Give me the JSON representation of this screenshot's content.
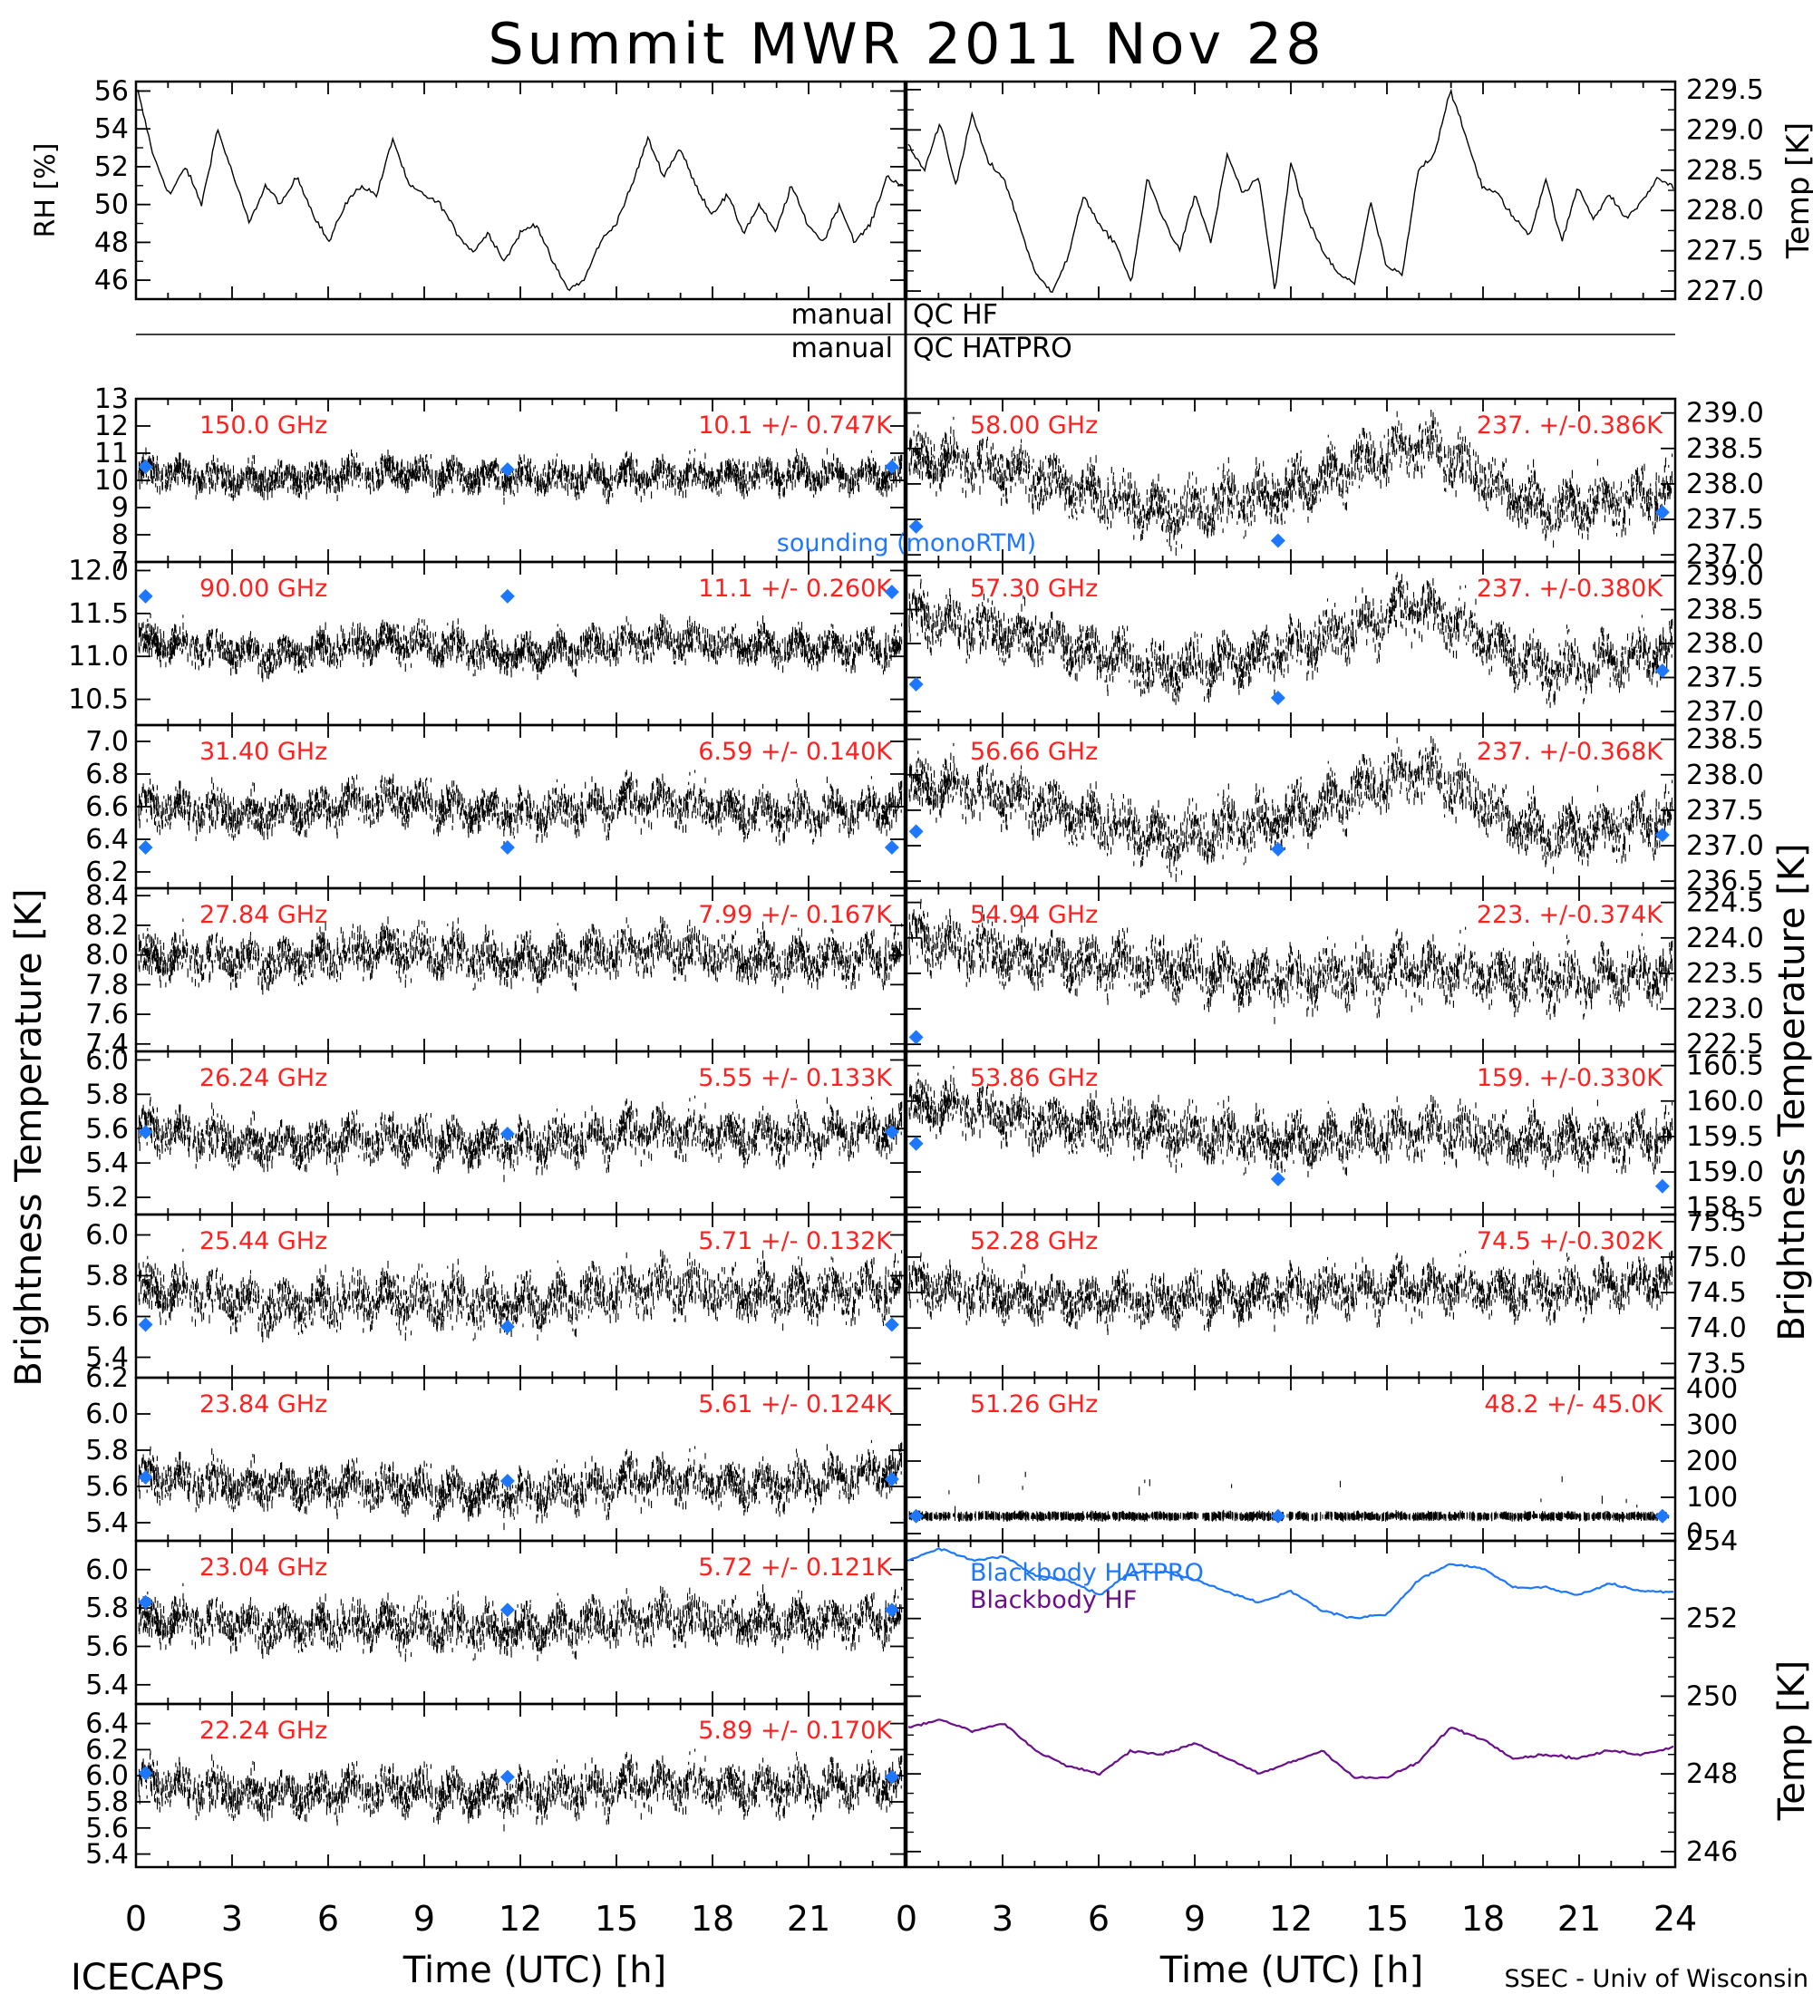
{
  "title": "Summit MWR 2011 Nov 28",
  "footer": {
    "left": "ICECAPS",
    "xlabel_left": "Time (UTC) [h]",
    "xlabel_right": "Time (UTC) [h]",
    "right": "SSEC - Univ of Wisconsin"
  },
  "qc_rows": [
    {
      "label_left": "manual",
      "label_right": "QC HF"
    },
    {
      "label_left": "manual",
      "label_right": "QC HATPRO"
    }
  ],
  "colors": {
    "trace": "#000000",
    "label": "#ff2020",
    "sounding": "#1e78ff",
    "bb_hatpro": "#1e78ff",
    "bb_hf": "#6a0f8a"
  },
  "axis_titles": {
    "left_main": "Brightness Temperature [K]",
    "right_main": "Brightness Temperature [K]"
  },
  "chart_data": [
    {
      "panel": "rh",
      "type": "line",
      "ylabel": "RH [%]",
      "x_ticks": [
        0,
        3,
        6,
        9,
        12,
        15,
        18,
        21,
        24
      ],
      "ylim": [
        45,
        56.5
      ],
      "y_ticks": [
        "46",
        "48",
        "50",
        "52",
        "54",
        "56"
      ],
      "y_tick_values": [
        46,
        48,
        50,
        52,
        54,
        56
      ],
      "x": [
        0,
        0.5,
        1,
        1.5,
        2,
        2.5,
        3,
        3.5,
        4,
        4.5,
        5,
        5.5,
        6,
        6.5,
        7,
        7.5,
        8,
        8.5,
        9,
        9.5,
        10,
        10.5,
        11,
        11.5,
        12,
        12.5,
        13,
        13.5,
        14,
        14.5,
        15,
        15.5,
        16,
        16.5,
        17,
        17.5,
        18,
        18.5,
        19,
        19.5,
        20,
        20.5,
        21,
        21.5,
        22,
        22.5,
        23,
        23.5,
        24
      ],
      "values": [
        56,
        52.5,
        50.5,
        52,
        50,
        54,
        51.5,
        49,
        51,
        50,
        51.5,
        49.5,
        48,
        50,
        51,
        50.5,
        53.5,
        51,
        50.5,
        50,
        48.5,
        47.5,
        48.5,
        47,
        48.5,
        49,
        47,
        45.5,
        46,
        48,
        49,
        51,
        53.5,
        51.5,
        53,
        51,
        49.5,
        50.5,
        48.5,
        50,
        48.5,
        51,
        49,
        48,
        50,
        48,
        49,
        51.5,
        51
      ]
    },
    {
      "panel": "air_temp",
      "type": "line",
      "ylabel": "Temp [K]",
      "x_ticks": [
        0,
        3,
        6,
        9,
        12,
        15,
        18,
        21,
        24
      ],
      "ylim": [
        226.9,
        229.6
      ],
      "y_ticks": [
        "227.0",
        "227.5",
        "228.0",
        "228.5",
        "229.0",
        "229.5"
      ],
      "y_tick_values": [
        227.0,
        227.5,
        228.0,
        228.5,
        229.0,
        229.5
      ],
      "x": [
        0,
        0.5,
        1,
        1.5,
        2,
        2.5,
        3,
        3.5,
        4,
        4.5,
        5,
        5.5,
        6,
        6.5,
        7,
        7.5,
        8,
        8.5,
        9,
        9.5,
        10,
        10.5,
        11,
        11.5,
        12,
        12.5,
        13,
        13.5,
        14,
        14.5,
        15,
        15.5,
        16,
        16.5,
        17,
        17.5,
        18,
        18.5,
        19,
        19.5,
        20,
        20.5,
        21,
        21.5,
        22,
        22.5,
        23,
        23.5,
        24
      ],
      "values": [
        228.8,
        228.5,
        229.1,
        228.3,
        229.2,
        228.6,
        228.4,
        227.8,
        227.2,
        227.0,
        227.4,
        228.2,
        227.8,
        227.6,
        227.1,
        228.4,
        227.9,
        227.5,
        228.2,
        227.6,
        228.7,
        228.2,
        228.4,
        227.0,
        228.6,
        227.9,
        227.5,
        227.2,
        227.1,
        228.1,
        227.3,
        227.2,
        228.5,
        228.7,
        229.5,
        228.9,
        228.3,
        228.2,
        227.9,
        227.7,
        228.4,
        227.6,
        228.3,
        227.9,
        228.2,
        227.9,
        228.1,
        228.4,
        228.3
      ]
    },
    {
      "panel": "hatpro",
      "type": "scatter",
      "freq": "150.0 GHz",
      "stats": "10.1 +/- 0.747K",
      "ylim": [
        7,
        13
      ],
      "y_ticks": [
        "7",
        "8",
        "9",
        "10",
        "11",
        "12",
        "13"
      ],
      "y_tick_values": [
        7,
        8,
        9,
        10,
        11,
        12,
        13
      ],
      "trend": [
        10.3,
        10.0,
        10.3,
        10.1,
        10.2,
        10.2,
        10.2
      ],
      "noise": 0.9,
      "sounding": {
        "x": [
          0.3,
          11.6,
          23.6
        ],
        "y": [
          10.5,
          10.4,
          10.5
        ],
        "label": "sounding (monoRTM)"
      }
    },
    {
      "panel": "hatpro",
      "type": "scatter",
      "freq": "90.00 GHz",
      "stats": "11.1 +/- 0.260K",
      "ylim": [
        10.2,
        12.1
      ],
      "y_ticks": [
        "10.5",
        "11.0",
        "11.5",
        "12.0"
      ],
      "y_tick_values": [
        10.5,
        11.0,
        11.5,
        12.0
      ],
      "trend": [
        11.2,
        11.0,
        11.2,
        11.0,
        11.2,
        11.1,
        11.1
      ],
      "noise": 0.32,
      "sounding": {
        "x": [
          0.3,
          11.6,
          23.6
        ],
        "y": [
          11.7,
          11.7,
          11.75
        ]
      }
    },
    {
      "panel": "hatpro",
      "type": "scatter",
      "freq": "31.40 GHz",
      "stats": "6.59 +/- 0.140K",
      "ylim": [
        6.1,
        7.1
      ],
      "y_ticks": [
        "6.2",
        "6.4",
        "6.6",
        "6.8",
        "7.0"
      ],
      "y_tick_values": [
        6.2,
        6.4,
        6.6,
        6.8,
        7.0
      ],
      "trend": [
        6.6,
        6.55,
        6.65,
        6.55,
        6.65,
        6.55,
        6.6
      ],
      "noise": 0.2,
      "sounding": {
        "x": [
          0.3,
          11.6,
          23.6
        ],
        "y": [
          6.35,
          6.35,
          6.35
        ]
      }
    },
    {
      "panel": "hatpro",
      "type": "scatter",
      "freq": "27.84 GHz",
      "stats": "7.99 +/- 0.167K",
      "ylim": [
        7.35,
        8.45
      ],
      "y_ticks": [
        "7.4",
        "7.6",
        "7.8",
        "8.0",
        "8.2",
        "8.4"
      ],
      "y_tick_values": [
        7.4,
        7.6,
        7.8,
        8.0,
        8.2,
        8.4
      ],
      "trend": [
        8.0,
        7.95,
        8.05,
        7.95,
        8.05,
        7.95,
        8.0
      ],
      "noise": 0.24,
      "sounding": {
        "x": [],
        "y": []
      }
    },
    {
      "panel": "hatpro",
      "type": "scatter",
      "freq": "26.24 GHz",
      "stats": "5.55 +/- 0.133K",
      "ylim": [
        5.1,
        6.05
      ],
      "y_ticks": [
        "5.2",
        "5.4",
        "5.6",
        "5.8",
        "6.0"
      ],
      "y_tick_values": [
        5.2,
        5.4,
        5.6,
        5.8,
        6.0
      ],
      "trend": [
        5.6,
        5.5,
        5.55,
        5.5,
        5.6,
        5.55,
        5.6
      ],
      "noise": 0.2,
      "sounding": {
        "x": [
          0.3,
          11.6,
          23.6
        ],
        "y": [
          5.58,
          5.57,
          5.58
        ]
      }
    },
    {
      "panel": "hatpro",
      "type": "scatter",
      "freq": "25.44 GHz",
      "stats": "5.71 +/- 0.132K",
      "ylim": [
        5.3,
        6.1
      ],
      "y_ticks": [
        "5.4",
        "5.6",
        "5.8",
        "6.0"
      ],
      "y_tick_values": [
        5.4,
        5.6,
        5.8,
        6.0
      ],
      "trend": [
        5.75,
        5.65,
        5.7,
        5.65,
        5.75,
        5.7,
        5.75
      ],
      "noise": 0.2,
      "sounding": {
        "x": [
          0.3,
          11.6,
          23.6
        ],
        "y": [
          5.56,
          5.55,
          5.56
        ]
      }
    },
    {
      "panel": "hatpro",
      "type": "scatter",
      "freq": "23.84 GHz",
      "stats": "5.61 +/- 0.124K",
      "ylim": [
        5.3,
        6.2
      ],
      "y_ticks": [
        "5.4",
        "5.6",
        "5.8",
        "6.0",
        "6.2"
      ],
      "y_tick_values": [
        5.4,
        5.6,
        5.8,
        6.0,
        6.2
      ],
      "trend": [
        5.65,
        5.6,
        5.6,
        5.55,
        5.65,
        5.6,
        5.7
      ],
      "noise": 0.18,
      "sounding": {
        "x": [
          0.3,
          11.6,
          23.6
        ],
        "y": [
          5.65,
          5.63,
          5.64
        ]
      }
    },
    {
      "panel": "hatpro",
      "type": "scatter",
      "freq": "23.04 GHz",
      "stats": "5.72 +/- 0.121K",
      "ylim": [
        5.3,
        6.15
      ],
      "y_ticks": [
        "5.4",
        "5.6",
        "5.8",
        "6.0"
      ],
      "y_tick_values": [
        5.4,
        5.6,
        5.8,
        6.0
      ],
      "trend": [
        5.75,
        5.7,
        5.72,
        5.68,
        5.75,
        5.72,
        5.75
      ],
      "noise": 0.18,
      "sounding": {
        "x": [
          0.3,
          11.6,
          23.6
        ],
        "y": [
          5.83,
          5.79,
          5.79
        ]
      }
    },
    {
      "panel": "hatpro",
      "type": "scatter",
      "freq": "22.24 GHz",
      "stats": "5.89 +/- 0.170K",
      "ylim": [
        5.3,
        6.55
      ],
      "y_ticks": [
        "5.4",
        "5.6",
        "5.8",
        "6.0",
        "6.2",
        "6.4"
      ],
      "y_tick_values": [
        5.4,
        5.6,
        5.8,
        6.0,
        6.2,
        6.4
      ],
      "trend": [
        5.95,
        5.85,
        5.9,
        5.85,
        5.95,
        5.9,
        5.95
      ],
      "noise": 0.26,
      "sounding": {
        "x": [
          0.3,
          11.6,
          23.6
        ],
        "y": [
          6.02,
          5.99,
          5.99
        ]
      }
    },
    {
      "panel": "hf",
      "type": "scatter",
      "freq": "58.00 GHz",
      "stats": "237. +/-0.386K",
      "ylim": [
        236.9,
        239.2
      ],
      "y_ticks": [
        "237.0",
        "237.5",
        "238.0",
        "238.5",
        "239.0"
      ],
      "y_tick_values": [
        237.0,
        237.5,
        238.0,
        238.5,
        239.0
      ],
      "trend": [
        238.4,
        238.1,
        237.6,
        237.9,
        238.6,
        237.6,
        237.9
      ],
      "noise": 0.6,
      "sounding": {
        "x": [
          0.3,
          11.6,
          23.6
        ],
        "y": [
          237.4,
          237.2,
          237.6
        ]
      }
    },
    {
      "panel": "hf",
      "type": "scatter",
      "freq": "57.30 GHz",
      "stats": "237. +/-0.380K",
      "ylim": [
        236.8,
        239.2
      ],
      "y_ticks": [
        "237.0",
        "237.5",
        "238.0",
        "238.5",
        "239.0"
      ],
      "y_tick_values": [
        237.0,
        237.5,
        238.0,
        238.5,
        239.0
      ],
      "trend": [
        238.4,
        238.1,
        237.6,
        237.9,
        238.6,
        237.6,
        237.9
      ],
      "noise": 0.6,
      "sounding": {
        "x": [
          0.3,
          11.6,
          23.6
        ],
        "y": [
          237.4,
          237.2,
          237.6
        ]
      }
    },
    {
      "panel": "hf",
      "type": "scatter",
      "freq": "56.66 GHz",
      "stats": "237. +/-0.368K",
      "ylim": [
        236.4,
        238.7
      ],
      "y_ticks": [
        "236.5",
        "237.0",
        "237.5",
        "238.0",
        "238.5"
      ],
      "y_tick_values": [
        236.5,
        237.0,
        237.5,
        238.0,
        238.5
      ],
      "trend": [
        237.9,
        237.6,
        237.1,
        237.4,
        238.1,
        237.1,
        237.4
      ],
      "noise": 0.6,
      "sounding": {
        "x": [
          0.3,
          11.6,
          23.6
        ],
        "y": [
          237.2,
          236.95,
          237.15
        ]
      }
    },
    {
      "panel": "hf",
      "type": "scatter",
      "freq": "54.94 GHz",
      "stats": "223. +/-0.374K",
      "ylim": [
        222.4,
        224.7
      ],
      "y_ticks": [
        "222.5",
        "223.0",
        "223.5",
        "224.0",
        "224.5"
      ],
      "y_tick_values": [
        222.5,
        223.0,
        223.5,
        224.0,
        224.5
      ],
      "trend": [
        224.0,
        223.7,
        223.6,
        223.4,
        223.6,
        223.4,
        223.5
      ],
      "noise": 0.6,
      "sounding": {
        "x": [
          0.3
        ],
        "y": [
          222.6
        ]
      }
    },
    {
      "panel": "hf",
      "type": "scatter",
      "freq": "53.86 GHz",
      "stats": "159. +/-0.330K",
      "ylim": [
        158.4,
        160.7
      ],
      "y_ticks": [
        "158.5",
        "159.0",
        "159.5",
        "160.0",
        "160.5"
      ],
      "y_tick_values": [
        158.5,
        159.0,
        159.5,
        160.0,
        160.5
      ],
      "trend": [
        160.0,
        159.7,
        159.6,
        159.4,
        159.6,
        159.4,
        159.5
      ],
      "noise": 0.55,
      "sounding": {
        "x": [
          0.3,
          11.6,
          23.6
        ],
        "y": [
          159.4,
          158.9,
          158.8
        ]
      }
    },
    {
      "panel": "hf",
      "type": "scatter",
      "freq": "52.28 GHz",
      "stats": "74.5 +/-0.302K",
      "ylim": [
        73.3,
        75.6
      ],
      "y_ticks": [
        "73.5",
        "74.0",
        "74.5",
        "75.0",
        "75.5"
      ],
      "y_tick_values": [
        73.5,
        74.0,
        74.5,
        75.0,
        75.5
      ],
      "trend": [
        74.6,
        74.4,
        74.4,
        74.5,
        74.6,
        74.5,
        74.7
      ],
      "noise": 0.5,
      "sounding": {
        "x": [],
        "y": []
      }
    },
    {
      "panel": "hf",
      "type": "scatter",
      "freq": "51.26 GHz",
      "stats": "48.2 +/- 45.0K",
      "ylim": [
        -20,
        430
      ],
      "y_ticks": [
        "0",
        "100",
        "200",
        "300",
        "400"
      ],
      "y_tick_values": [
        0,
        100,
        200,
        300,
        400
      ],
      "trend": [
        48,
        48,
        48,
        48,
        48,
        48,
        48
      ],
      "noise": 6,
      "spikes": true,
      "sounding": {
        "x": [
          0.3,
          11.6,
          23.6
        ],
        "y": [
          48,
          48,
          48
        ]
      }
    },
    {
      "panel": "blackbody",
      "type": "line",
      "ylabel": "Temp [K]",
      "ylim": [
        245.6,
        254
      ],
      "y_ticks": [
        "246",
        "248",
        "250",
        "252",
        "254"
      ],
      "y_tick_values": [
        246,
        248,
        250,
        252,
        254
      ],
      "x_ticks": [
        "0",
        "3",
        "6",
        "9",
        "12",
        "15",
        "18",
        "21",
        "24"
      ],
      "x_tick_values": [
        0,
        3,
        6,
        9,
        12,
        15,
        18,
        21,
        24
      ],
      "x_left_ticks": [
        "0",
        "3",
        "6",
        "9",
        "12",
        "15",
        "18",
        "21"
      ],
      "x": [
        0,
        1,
        2,
        3,
        4,
        5,
        6,
        7,
        8,
        9,
        10,
        11,
        12,
        13,
        14,
        15,
        16,
        17,
        18,
        19,
        20,
        21,
        22,
        23,
        24
      ],
      "series": [
        {
          "name": "Blackbody HATPRO",
          "values": [
            253.5,
            253.8,
            253.5,
            253.6,
            253.1,
            253.0,
            252.6,
            253.2,
            253.2,
            253.0,
            252.7,
            252.4,
            252.7,
            252.2,
            252.0,
            252.1,
            253.0,
            253.4,
            253.3,
            252.8,
            252.8,
            252.6,
            252.9,
            252.7,
            252.7
          ]
        },
        {
          "name": "Blackbody HF",
          "values": [
            249.2,
            249.4,
            249.1,
            249.3,
            248.6,
            248.2,
            248.0,
            248.6,
            248.5,
            248.8,
            248.4,
            248.0,
            248.3,
            248.6,
            247.9,
            247.9,
            248.3,
            249.2,
            248.9,
            248.4,
            248.5,
            248.4,
            248.6,
            248.5,
            248.7
          ]
        }
      ]
    }
  ]
}
